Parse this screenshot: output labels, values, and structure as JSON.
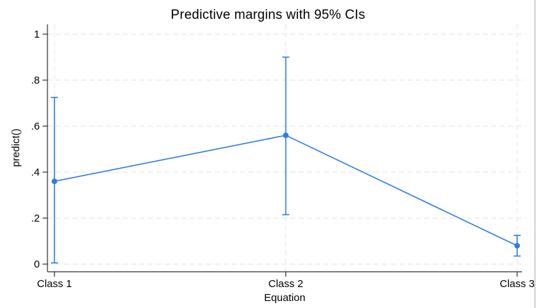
{
  "window": {
    "right_border_color": "#a9a9a9",
    "background": "#ffffff"
  },
  "chart_data": {
    "type": "line",
    "title": "Predictive margins with 95% CIs",
    "xlabel": "Equation",
    "ylabel": "predict()",
    "categories": [
      "Class 1",
      "Class 2",
      "Class 3"
    ],
    "series": [
      {
        "name": "Predictive margins",
        "values": [
          0.36,
          0.56,
          0.08
        ],
        "ci_low": [
          0.005,
          0.215,
          0.035
        ],
        "ci_high": [
          0.725,
          0.9,
          0.125
        ]
      }
    ],
    "yticks": {
      "values": [
        0,
        0.2,
        0.4,
        0.6,
        0.8,
        1
      ],
      "labels": [
        "0",
        ".2",
        ".4",
        ".6",
        ".8",
        "1"
      ]
    },
    "ylim": [
      0,
      1
    ],
    "grid": true,
    "grid_style": "dashed",
    "legend": "none",
    "marker": "circle",
    "colors": {
      "accent": "#2e7de2",
      "grid": "#e8e8e8",
      "axis": "#303030",
      "text": "#000000"
    }
  }
}
